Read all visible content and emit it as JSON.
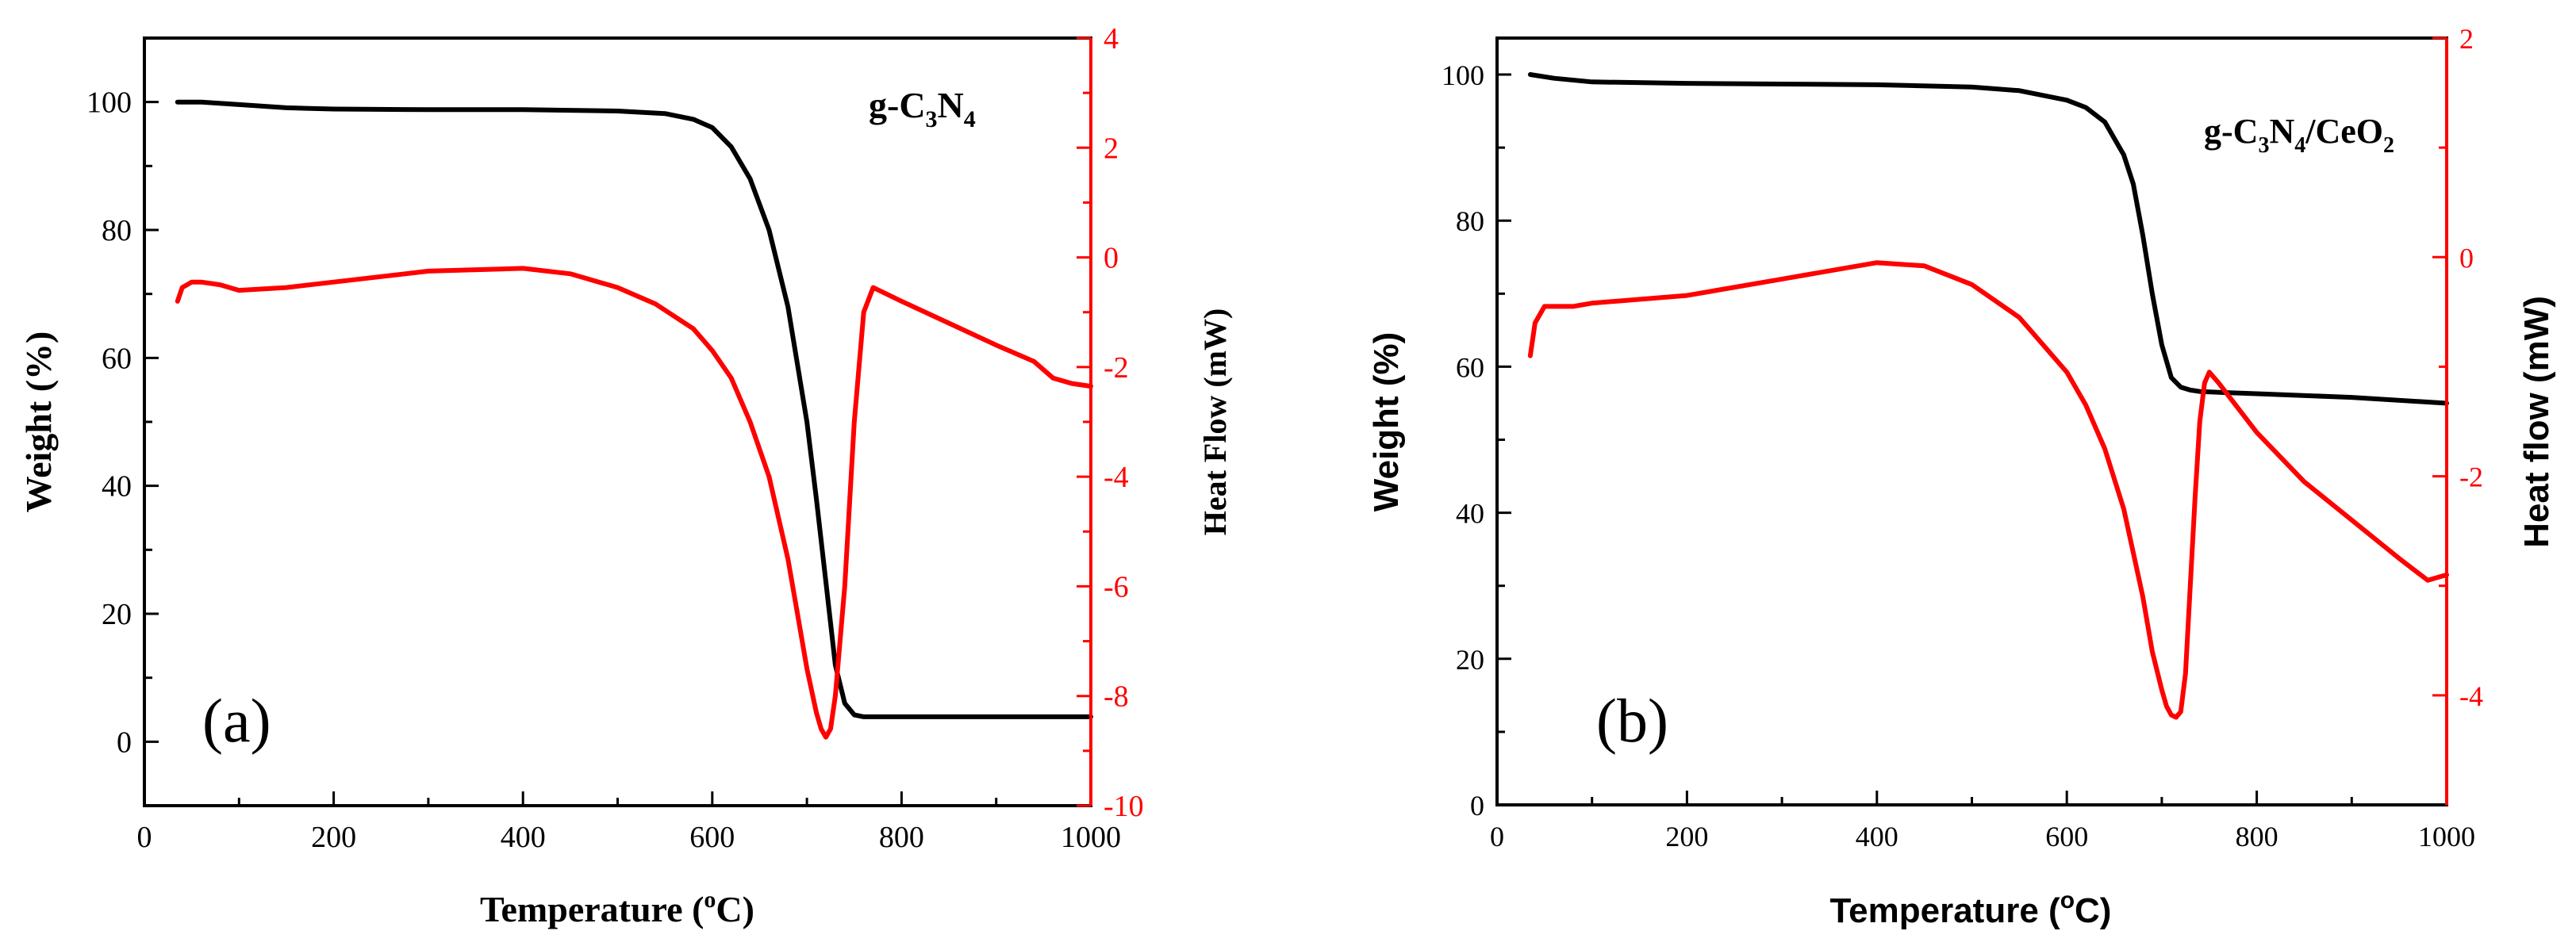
{
  "chart_data": [
    {
      "id": "a",
      "type": "line",
      "panel_label": "(a)",
      "annotation": {
        "base": "g-C",
        "sub1": "3",
        "mid": "N",
        "sub2": "4",
        "tail": ""
      },
      "xlabel": {
        "main": "Temperature (",
        "sup": "o",
        "tail": "C)"
      },
      "ylabel_left": "Weight (%)",
      "ylabel_right": "Heat Flow (mW)",
      "xlim": [
        0,
        1000
      ],
      "ylim_left": [
        -10,
        110
      ],
      "ylim_right": [
        -10,
        4
      ],
      "x_ticks": [
        0,
        200,
        400,
        600,
        800,
        1000
      ],
      "y_left_ticks": [
        0,
        20,
        40,
        60,
        80,
        100
      ],
      "y_right_ticks": [
        -10,
        -8,
        -6,
        -4,
        -2,
        0,
        2,
        4
      ],
      "colors": {
        "weight": "#000000",
        "heat": "#ff0000"
      },
      "series": [
        {
          "name": "Weight",
          "axis": "left",
          "x": [
            35,
            60,
            100,
            150,
            200,
            300,
            400,
            500,
            550,
            580,
            600,
            620,
            640,
            660,
            680,
            700,
            710,
            720,
            730,
            740,
            750,
            760,
            800,
            900,
            1000
          ],
          "y": [
            100,
            100,
            99.6,
            99.1,
            98.9,
            98.8,
            98.8,
            98.6,
            98.2,
            97.3,
            96.0,
            93.0,
            88.0,
            80.0,
            68.0,
            50.0,
            38.0,
            25.0,
            12.0,
            6.0,
            4.2,
            3.9,
            3.9,
            3.9,
            3.9
          ]
        },
        {
          "name": "Heat Flow",
          "axis": "right",
          "x": [
            35,
            40,
            50,
            60,
            80,
            100,
            150,
            200,
            300,
            400,
            450,
            500,
            540,
            580,
            600,
            620,
            640,
            660,
            680,
            690,
            700,
            710,
            715,
            720,
            725,
            730,
            740,
            750,
            760,
            770,
            800,
            850,
            900,
            940,
            960,
            980,
            1000
          ],
          "y": [
            -0.8,
            -0.55,
            -0.45,
            -0.45,
            -0.5,
            -0.6,
            -0.55,
            -0.45,
            -0.25,
            -0.2,
            -0.3,
            -0.55,
            -0.85,
            -1.3,
            -1.7,
            -2.2,
            -3.0,
            -4.0,
            -5.5,
            -6.5,
            -7.5,
            -8.3,
            -8.6,
            -8.75,
            -8.6,
            -8.0,
            -6.0,
            -3.0,
            -1.0,
            -0.55,
            -0.8,
            -1.2,
            -1.6,
            -1.9,
            -2.2,
            -2.3,
            -2.35
          ]
        }
      ]
    },
    {
      "id": "b",
      "type": "line",
      "panel_label": "(b)",
      "annotation": {
        "base": "g-C",
        "sub1": "3",
        "mid": "N",
        "sub2": "4",
        "tail": "/CeO",
        "sub3": "2"
      },
      "xlabel": {
        "main": "Temperature (",
        "sup": "o",
        "tail": "C)"
      },
      "ylabel_left": "Weight (%)",
      "ylabel_right": "Heat flow (mW)",
      "xlim": [
        0,
        1000
      ],
      "ylim_left": [
        0,
        105
      ],
      "ylim_right": [
        -5,
        2
      ],
      "x_ticks": [
        0,
        200,
        400,
        600,
        800,
        1000
      ],
      "y_left_ticks": [
        0,
        20,
        40,
        60,
        80,
        100
      ],
      "y_right_ticks": [
        -4,
        -2,
        0,
        2
      ],
      "colors": {
        "weight": "#000000",
        "heat": "#ff0000"
      },
      "series": [
        {
          "name": "Weight",
          "axis": "left",
          "x": [
            35,
            60,
            100,
            200,
            300,
            400,
            500,
            550,
            600,
            620,
            640,
            660,
            670,
            680,
            690,
            700,
            710,
            720,
            730,
            740,
            760,
            800,
            900,
            1000
          ],
          "y": [
            100,
            99.5,
            99.0,
            98.8,
            98.7,
            98.6,
            98.3,
            97.8,
            96.5,
            95.5,
            93.5,
            89.0,
            85.0,
            78.0,
            70.0,
            63.0,
            58.5,
            57.2,
            56.8,
            56.6,
            56.5,
            56.3,
            55.8,
            55.0
          ]
        },
        {
          "name": "Heat flow",
          "axis": "right",
          "x": [
            35,
            40,
            50,
            60,
            80,
            100,
            200,
            300,
            400,
            450,
            500,
            550,
            600,
            620,
            640,
            660,
            680,
            690,
            700,
            705,
            710,
            715,
            720,
            725,
            730,
            735,
            740,
            745,
            750,
            760,
            800,
            850,
            900,
            950,
            980,
            1000
          ],
          "y": [
            -0.9,
            -0.6,
            -0.45,
            -0.45,
            -0.45,
            -0.42,
            -0.35,
            -0.2,
            -0.05,
            -0.08,
            -0.25,
            -0.55,
            -1.05,
            -1.35,
            -1.75,
            -2.3,
            -3.1,
            -3.6,
            -3.95,
            -4.1,
            -4.18,
            -4.2,
            -4.15,
            -3.8,
            -3.0,
            -2.2,
            -1.5,
            -1.15,
            -1.05,
            -1.15,
            -1.6,
            -2.05,
            -2.4,
            -2.75,
            -2.95,
            -2.9
          ]
        }
      ]
    }
  ]
}
